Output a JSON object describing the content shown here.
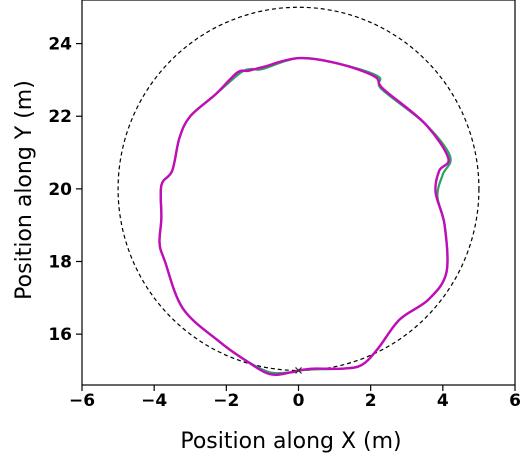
{
  "chart_data": {
    "type": "line",
    "title": "",
    "xlabel": "Position along X (m)",
    "ylabel": "Position along Y (m)",
    "xlim": [
      -6,
      6
    ],
    "ylim": [
      14.6,
      25.2
    ],
    "xticks": [
      -6,
      -4,
      -2,
      0,
      2,
      4,
      6
    ],
    "yticks": [
      16,
      18,
      20,
      22,
      24
    ],
    "xtick_labels": [
      "−6",
      "−4",
      "−2",
      "0",
      "2",
      "4",
      "6"
    ],
    "ytick_labels": [
      "16",
      "18",
      "20",
      "22",
      "24"
    ],
    "grid": false,
    "legend": "none",
    "reference_circle": {
      "center": [
        0,
        20
      ],
      "radius": 5,
      "style": "dashed",
      "color": "#000000"
    },
    "start_marker": {
      "x": 0,
      "y": 15,
      "symbol": "x"
    },
    "series": [
      {
        "color": "#2ca25f",
        "points": [
          [
            0,
            15.0
          ],
          [
            0.4,
            15.03
          ],
          [
            1.2,
            15.05
          ],
          [
            1.75,
            15.15
          ],
          [
            2.2,
            15.6
          ],
          [
            2.8,
            16.4
          ],
          [
            3.6,
            16.95
          ],
          [
            4.1,
            17.7
          ],
          [
            4.05,
            19.0
          ],
          [
            3.85,
            19.8
          ],
          [
            4.0,
            20.4
          ],
          [
            4.2,
            20.9
          ],
          [
            3.5,
            21.8
          ],
          [
            2.3,
            22.75
          ],
          [
            2.2,
            23.1
          ],
          [
            1.1,
            23.45
          ],
          [
            0,
            23.6
          ],
          [
            -1.0,
            23.3
          ],
          [
            -1.3,
            23.3
          ],
          [
            -1.6,
            23.2
          ],
          [
            -2.3,
            22.6
          ],
          [
            -3.0,
            22.0
          ],
          [
            -3.3,
            21.4
          ],
          [
            -3.5,
            20.5
          ],
          [
            -3.8,
            20.1
          ],
          [
            -3.8,
            19.2
          ],
          [
            -3.85,
            18.5
          ],
          [
            -3.7,
            18.0
          ],
          [
            -3.2,
            16.7
          ],
          [
            -2.2,
            15.8
          ],
          [
            -1.5,
            15.3
          ],
          [
            -0.8,
            14.95
          ],
          [
            -0.2,
            14.95
          ],
          [
            0,
            15.0
          ]
        ]
      },
      {
        "color": "#c20cb9",
        "points": [
          [
            0,
            15.0
          ],
          [
            0.4,
            15.05
          ],
          [
            1.2,
            15.05
          ],
          [
            1.75,
            15.15
          ],
          [
            2.2,
            15.6
          ],
          [
            2.8,
            16.4
          ],
          [
            3.6,
            16.95
          ],
          [
            4.1,
            17.7
          ],
          [
            4.05,
            19.0
          ],
          [
            3.8,
            19.9
          ],
          [
            3.9,
            20.5
          ],
          [
            4.15,
            20.85
          ],
          [
            3.5,
            21.8
          ],
          [
            2.35,
            22.75
          ],
          [
            2.1,
            23.1
          ],
          [
            1.1,
            23.45
          ],
          [
            0,
            23.6
          ],
          [
            -1.0,
            23.35
          ],
          [
            -1.4,
            23.25
          ],
          [
            -1.7,
            23.2
          ],
          [
            -2.3,
            22.6
          ],
          [
            -3.0,
            22.0
          ],
          [
            -3.3,
            21.4
          ],
          [
            -3.5,
            20.5
          ],
          [
            -3.8,
            20.1
          ],
          [
            -3.8,
            19.2
          ],
          [
            -3.85,
            18.5
          ],
          [
            -3.7,
            18.0
          ],
          [
            -3.2,
            16.7
          ],
          [
            -2.2,
            15.8
          ],
          [
            -1.5,
            15.3
          ],
          [
            -0.8,
            14.9
          ],
          [
            -0.2,
            14.95
          ],
          [
            0,
            15.0
          ]
        ]
      }
    ]
  }
}
